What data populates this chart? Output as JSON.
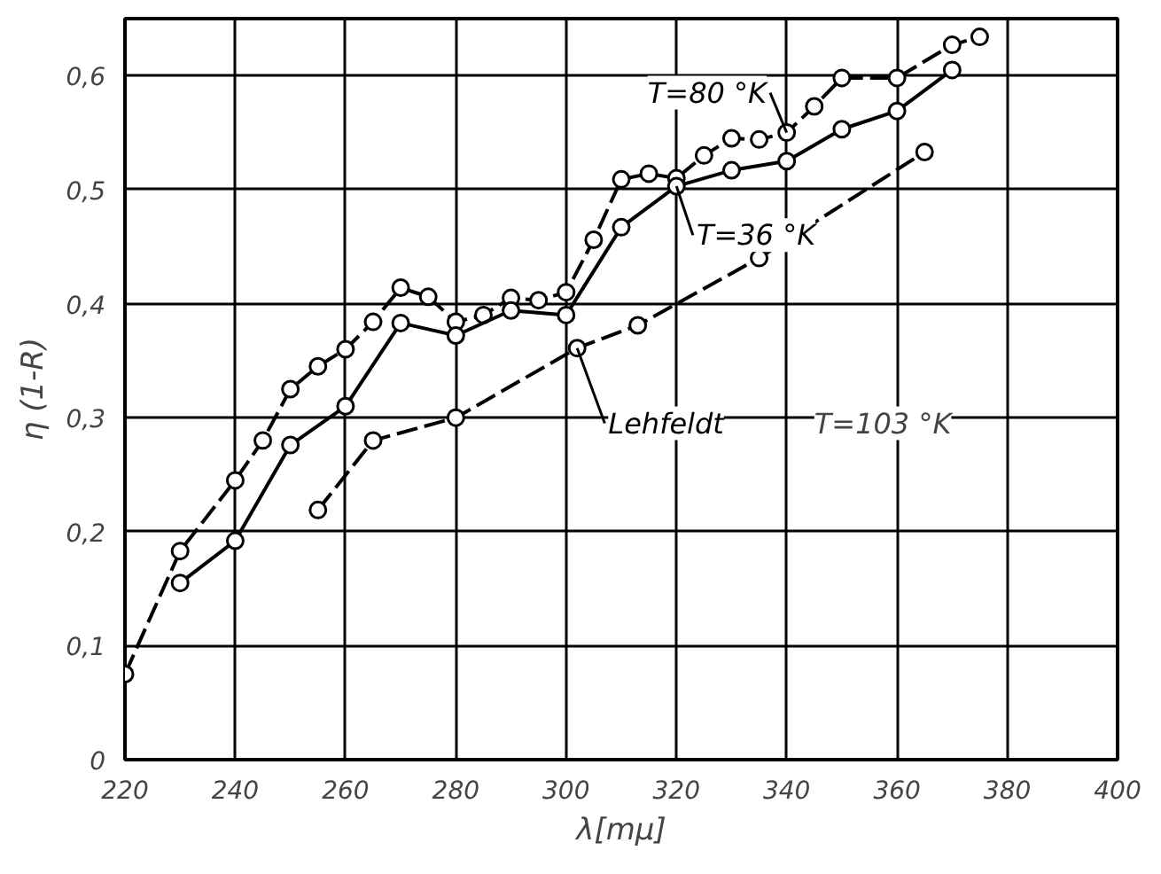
{
  "chart_data": {
    "type": "line",
    "xlabel": "λ[mμ]",
    "ylabel": "η (1-R)",
    "xlim": [
      220,
      400
    ],
    "ylim": [
      0,
      0.65
    ],
    "xticks": [
      220,
      240,
      260,
      280,
      300,
      320,
      340,
      360,
      380,
      400
    ],
    "yticks": [
      0,
      {
        "value": 0.1,
        "label": "0,1"
      },
      {
        "value": 0.2,
        "label": "0,2"
      },
      {
        "value": 0.3,
        "label": "0,3"
      },
      {
        "value": 0.4,
        "label": "0,4"
      },
      {
        "value": 0.5,
        "label": "0,5"
      },
      {
        "value": 0.6,
        "label": "0,6"
      }
    ],
    "grid": true,
    "marker": "circle",
    "series": [
      {
        "name": "T=80 °K",
        "color": "#000000",
        "line_style": "dashed",
        "x": [
          220,
          230,
          240,
          245,
          250,
          255,
          260,
          265,
          270,
          275,
          280,
          285,
          290,
          295,
          300,
          305,
          310,
          315,
          320,
          325,
          330,
          335,
          340,
          345,
          350,
          360,
          370,
          375
        ],
        "values": [
          0.075,
          0.183,
          0.245,
          0.28,
          0.325,
          0.345,
          0.36,
          0.384,
          0.414,
          0.406,
          0.384,
          0.39,
          0.405,
          0.403,
          0.41,
          0.456,
          0.509,
          0.514,
          0.51,
          0.53,
          0.545,
          0.544,
          0.55,
          0.573,
          0.598,
          0.598,
          0.627,
          0.634
        ]
      },
      {
        "name": "T=36 °K",
        "color": "#000000",
        "line_style": "solid",
        "x": [
          230,
          240,
          250,
          260,
          270,
          280,
          290,
          300,
          310,
          320,
          330,
          340,
          350,
          360,
          370
        ],
        "values": [
          0.155,
          0.192,
          0.276,
          0.31,
          0.383,
          0.372,
          0.394,
          0.39,
          0.467,
          0.503,
          0.517,
          0.525,
          0.553,
          0.569,
          0.605
        ]
      },
      {
        "name": "Lehfeldt",
        "color": "#000000",
        "line_style": "dashed",
        "x": [
          255,
          265,
          280,
          302,
          313,
          335,
          365
        ],
        "values": [
          0.219,
          0.28,
          0.3,
          0.361,
          0.381,
          0.44,
          0.533
        ]
      }
    ],
    "annotations": [
      "T=103 °K"
    ]
  }
}
